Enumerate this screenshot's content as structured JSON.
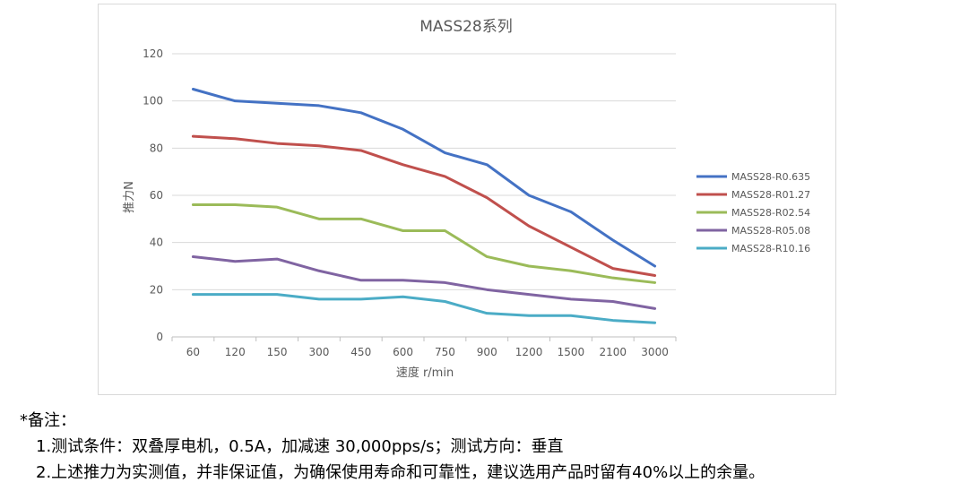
{
  "chart_data": {
    "type": "line",
    "title": "MASS28系列",
    "xlabel": "速度 r/min",
    "ylabel": "推力N",
    "categories": [
      "60",
      "120",
      "150",
      "300",
      "450",
      "600",
      "750",
      "900",
      "1200",
      "1500",
      "2100",
      "3000"
    ],
    "ylim": [
      0,
      120
    ],
    "yticks": [
      0,
      20,
      40,
      60,
      80,
      100,
      120
    ],
    "grid": true,
    "legend_position": "right",
    "series": [
      {
        "name": "MASS28-R0.635",
        "color": "#4472C4",
        "values": [
          105,
          100,
          99,
          98,
          95,
          88,
          78,
          73,
          60,
          53,
          41,
          30
        ]
      },
      {
        "name": "MASS28-R01.27",
        "color": "#C0504D",
        "values": [
          85,
          84,
          82,
          81,
          79,
          73,
          68,
          59,
          47,
          38,
          29,
          26
        ]
      },
      {
        "name": "MASS28-R02.54",
        "color": "#9BBB59",
        "values": [
          56,
          56,
          55,
          50,
          50,
          45,
          45,
          34,
          30,
          28,
          25,
          23
        ]
      },
      {
        "name": "MASS28-R05.08",
        "color": "#8064A2",
        "values": [
          34,
          32,
          33,
          28,
          24,
          24,
          23,
          20,
          18,
          16,
          15,
          12
        ]
      },
      {
        "name": "MASS28-R10.16",
        "color": "#4BACC6",
        "values": [
          18,
          18,
          18,
          16,
          16,
          17,
          15,
          10,
          9,
          9,
          7,
          6
        ]
      }
    ]
  },
  "notes": {
    "title": "*备注：",
    "line1": "1.测试条件：双叠厚电机，0.5A，加减速 30,000pps/s；测试方向：垂直",
    "line2": "2.上述推力为实测值，并非保证值，为确保使用寿命和可靠性，建议选用产品时留有40%以上的余量。"
  }
}
